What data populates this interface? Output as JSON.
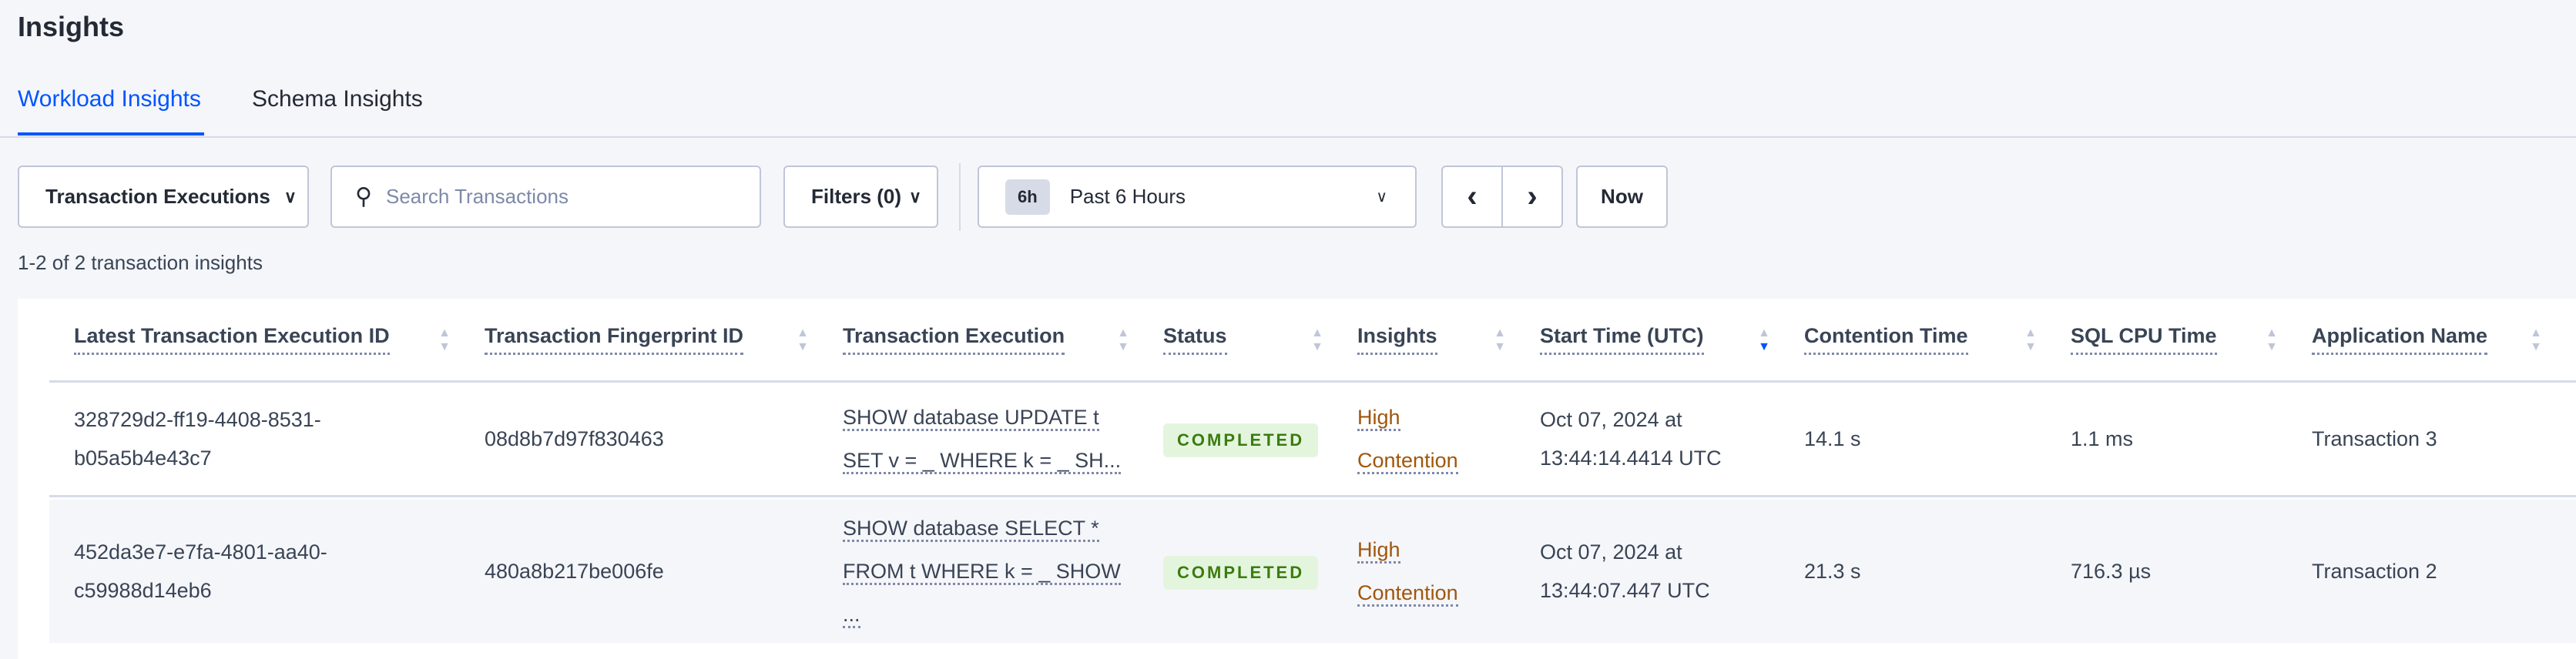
{
  "page": {
    "title": "Insights"
  },
  "tabs": [
    {
      "label": "Workload Insights",
      "active": true
    },
    {
      "label": "Schema Insights",
      "active": false
    }
  ],
  "toolbar": {
    "type_select": "Transaction Executions",
    "search_placeholder": "Search Transactions",
    "filters": "Filters (0)",
    "time_badge": "6h",
    "time_range": "Past 6 Hours",
    "prev": "‹",
    "next": "›",
    "now": "Now"
  },
  "count_text": "1-2 of 2 transaction insights",
  "colors": {
    "accent": "#0055ff",
    "insight": "#a0560c",
    "status_bg": "#e4f5de",
    "status_text": "#3b7c0f"
  },
  "table": {
    "columns": [
      "Latest Transaction Execution ID",
      "Transaction Fingerprint ID",
      "Transaction Execution",
      "Status",
      "Insights",
      "Start Time (UTC)",
      "Contention Time",
      "SQL CPU Time",
      "Application Name"
    ],
    "sorted_column": "Start Time (UTC)",
    "sort_direction": "descending",
    "rows": [
      {
        "exec_id": [
          "328729d2-ff19-4408-8531-",
          "b05a5b4e43c7"
        ],
        "fingerprint": "08d8b7d97f830463",
        "execution": [
          "SHOW database UPDATE t",
          "SET v = _ WHERE k = _ SH..."
        ],
        "status": "COMPLETED",
        "insights": [
          "High",
          "Contention"
        ],
        "start": [
          "Oct 07, 2024 at",
          "13:44:14.4414 UTC"
        ],
        "contention": "14.1 s",
        "cpu": "1.1 ms",
        "app": "Transaction 3"
      },
      {
        "exec_id": [
          "452da3e7-e7fa-4801-aa40-",
          "c59988d14eb6"
        ],
        "fingerprint": "480a8b217be006fe",
        "execution": [
          "SHOW database SELECT *",
          "FROM t WHERE k = _ SHOW",
          "..."
        ],
        "status": "COMPLETED",
        "insights": [
          "High",
          "Contention"
        ],
        "start": [
          "Oct 07, 2024 at",
          "13:44:07.447 UTC"
        ],
        "contention": "21.3 s",
        "cpu": "716.3 µs",
        "app": "Transaction 2"
      }
    ]
  }
}
